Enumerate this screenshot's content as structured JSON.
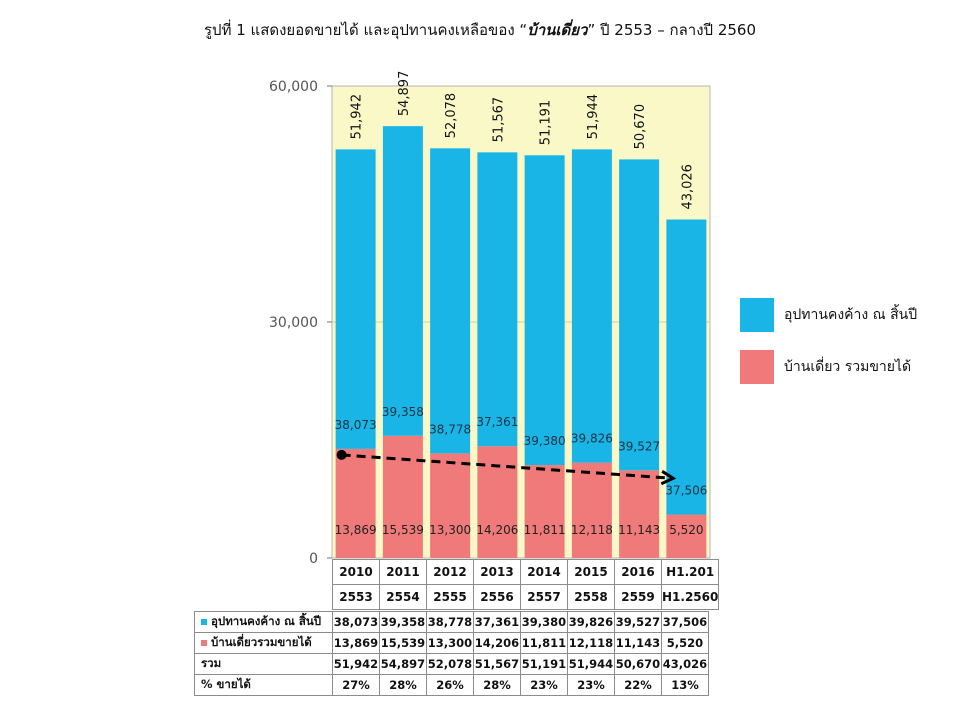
{
  "title": {
    "prefix": "รูปที่ 1 แสดงยอดขายได้ และอุปทานคงเหลือของ “",
    "emphasis": "บ้านเดี่ยว",
    "suffix": "” ปี 2553 – กลางปี 2560"
  },
  "chart_data": {
    "type": "bar",
    "stacked": true,
    "categories": [
      "2010",
      "2011",
      "2012",
      "2013",
      "2014",
      "2015",
      "2016",
      "H1.201"
    ],
    "categories_be": [
      "2553",
      "2554",
      "2555",
      "2556",
      "2557",
      "2558",
      "2559",
      "H1.2560"
    ],
    "series": [
      {
        "name": "บ้านเดี่ยว รวมขายได้",
        "color": "#f07a7a",
        "values": [
          13869,
          15539,
          13300,
          14206,
          11811,
          12118,
          11143,
          5520
        ]
      },
      {
        "name": "อุปทานคงค้าง ณ สิ้นปี",
        "color": "#19b5e6",
        "values": [
          38073,
          39358,
          38778,
          37361,
          39380,
          39826,
          39527,
          37506
        ]
      }
    ],
    "totals": [
      51942,
      54897,
      52078,
      51567,
      51191,
      51944,
      50670,
      43026
    ],
    "ylim": [
      0,
      60000
    ],
    "yticks": [
      "0",
      "30,000",
      "60,000"
    ],
    "trend_arrow": {
      "from_category": "2010",
      "to_category": "2016"
    },
    "plot_bg": "#fbf8c8",
    "legend_position": "right"
  },
  "legend": [
    {
      "label": "อุปทานคงค้าง ณ สิ้นปี",
      "color": "#19b5e6"
    },
    {
      "label": "บ้านเดี่ยว รวมขายได้",
      "color": "#f07a7a"
    }
  ],
  "table": {
    "rows": [
      {
        "label": "อุปทานคงค้าง ณ สิ้นปี",
        "color": "#19b5e6",
        "values": [
          "38,073",
          "39,358",
          "38,778",
          "37,361",
          "39,380",
          "39,826",
          "39,527",
          "37,506"
        ]
      },
      {
        "label": "บ้านเดี่ยวรวมขายได้",
        "color": "#f07a7a",
        "values": [
          "13,869",
          "15,539",
          "13,300",
          "14,206",
          "11,811",
          "12,118",
          "11,143",
          "5,520"
        ]
      },
      {
        "label": "รวม",
        "color": "",
        "values": [
          "51,942",
          "54,897",
          "52,078",
          "51,567",
          "51,191",
          "51,944",
          "50,670",
          "43,026"
        ]
      },
      {
        "label": "% ขายได้",
        "color": "",
        "values": [
          "27%",
          "28%",
          "26%",
          "28%",
          "23%",
          "23%",
          "22%",
          "13%"
        ]
      }
    ]
  }
}
